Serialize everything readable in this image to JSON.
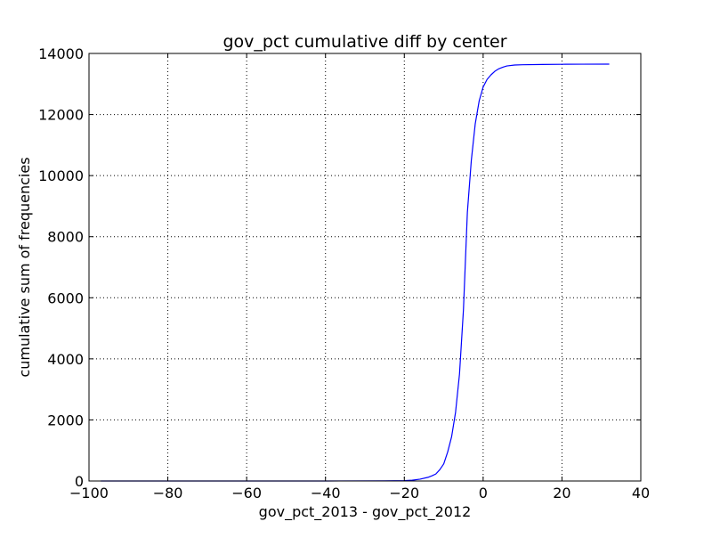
{
  "chart_data": {
    "type": "line",
    "title": "gov_pct cumulative diff by center",
    "xlabel": "gov_pct_2013 - gov_pct_2012",
    "ylabel": "cumulative sum of frequencies",
    "xlim": [
      -100,
      40
    ],
    "ylim": [
      0,
      14000
    ],
    "grid": true,
    "legend": "none",
    "line_color": "#0000ff",
    "x_ticks": [
      -100,
      -80,
      -60,
      -40,
      -20,
      0,
      20,
      40
    ],
    "x_tick_labels": [
      "−100",
      "−80",
      "−60",
      "−40",
      "−20",
      "0",
      "20",
      "40"
    ],
    "y_ticks": [
      0,
      2000,
      4000,
      6000,
      8000,
      10000,
      12000,
      14000
    ],
    "y_tick_labels": [
      "0",
      "2000",
      "4000",
      "6000",
      "8000",
      "10000",
      "12000",
      "14000"
    ],
    "series": [
      {
        "x": [
          -97,
          -80,
          -60,
          -40,
          -25,
          -20,
          -18,
          -16,
          -14,
          -13,
          -12,
          -11,
          -10,
          -9,
          -8,
          -7,
          -6,
          -5,
          -4,
          -3,
          -2,
          -1,
          0,
          1,
          2,
          3,
          4,
          5,
          6,
          8,
          10,
          15,
          20,
          25,
          32
        ],
        "y": [
          0,
          0,
          0,
          0,
          5,
          10,
          25,
          60,
          120,
          170,
          230,
          370,
          560,
          950,
          1450,
          2250,
          3500,
          5600,
          8800,
          10500,
          11700,
          12450,
          12900,
          13150,
          13300,
          13420,
          13500,
          13550,
          13590,
          13620,
          13630,
          13640,
          13645,
          13648,
          13650
        ]
      }
    ]
  }
}
